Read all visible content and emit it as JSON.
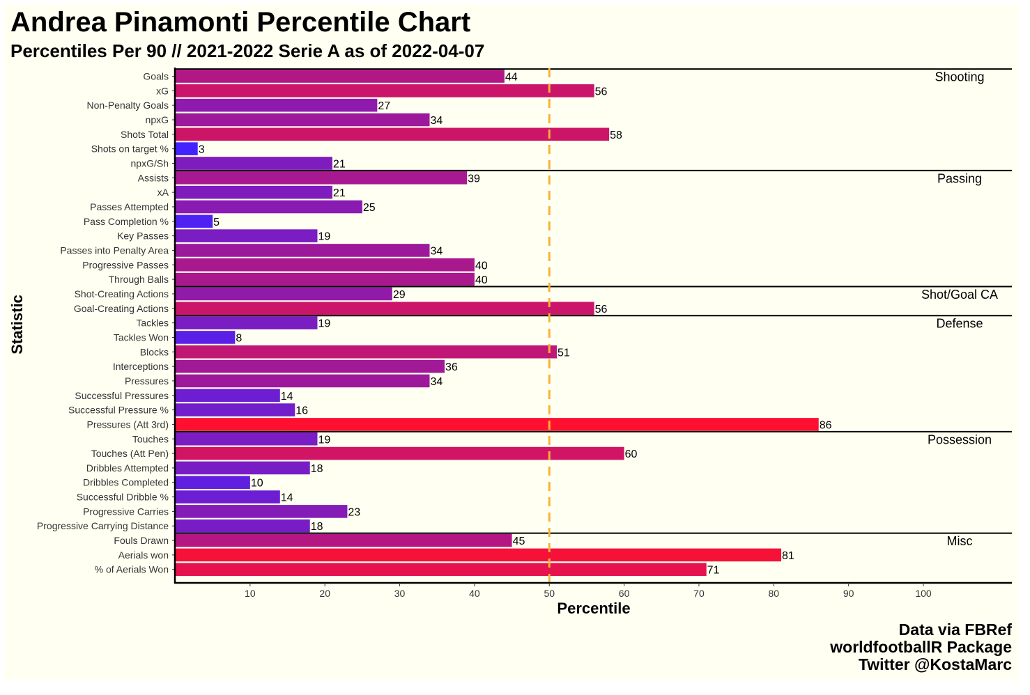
{
  "title": "Andrea Pinamonti Percentile Chart",
  "subtitle": "Percentiles Per 90 // 2021-2022 Serie A as of 2022-04-07",
  "caption": [
    "Data via FBRef",
    "worldfootballR Package",
    "Twitter @KostaMarc"
  ],
  "colors": {
    "background": "#fffff2",
    "low": "#4422ff",
    "high": "#ff1030",
    "reference_line": "#f9b233",
    "text": "#000000"
  },
  "chart_data": {
    "type": "bar",
    "orientation": "horizontal",
    "xlabel": "Percentile",
    "ylabel": "Statistic",
    "xlim": [
      0,
      112
    ],
    "xticks": [
      10,
      20,
      30,
      40,
      50,
      60,
      70,
      80,
      90,
      100
    ],
    "reference_line": 50,
    "grid": false,
    "categories": [
      "Goals",
      "xG",
      "Non-Penalty Goals",
      "npxG",
      "Shots Total",
      "Shots on target %",
      "npxG/Sh",
      "Assists",
      "xA",
      "Passes Attempted",
      "Pass Completion %",
      "Key Passes",
      "Passes into Penalty Area",
      "Progressive Passes",
      "Through Balls",
      "Shot-Creating Actions",
      "Goal-Creating Actions",
      "Tackles",
      "Tackles Won",
      "Blocks",
      "Interceptions",
      "Pressures",
      "Successful Pressures",
      "Successful Pressure %",
      "Pressures (Att 3rd)",
      "Touches",
      "Touches (Att Pen)",
      "Dribbles Attempted",
      "Dribbles Completed",
      "Successful Dribble %",
      "Progressive Carries",
      "Progressive Carrying Distance",
      "Fouls Drawn",
      "Aerials won",
      "% of Aerials Won"
    ],
    "values": [
      44,
      56,
      27,
      34,
      58,
      3,
      21,
      39,
      21,
      25,
      5,
      19,
      34,
      40,
      40,
      29,
      56,
      19,
      8,
      51,
      36,
      34,
      14,
      16,
      86,
      19,
      60,
      18,
      10,
      14,
      23,
      18,
      45,
      81,
      71
    ],
    "groups": [
      {
        "name": "Shooting",
        "start": 0,
        "count": 7
      },
      {
        "name": "Passing",
        "start": 7,
        "count": 8
      },
      {
        "name": "Shot/Goal CA",
        "start": 15,
        "count": 2
      },
      {
        "name": "Defense",
        "start": 17,
        "count": 8
      },
      {
        "name": "Possession",
        "start": 25,
        "count": 7
      },
      {
        "name": "Misc",
        "start": 32,
        "count": 3
      }
    ]
  }
}
